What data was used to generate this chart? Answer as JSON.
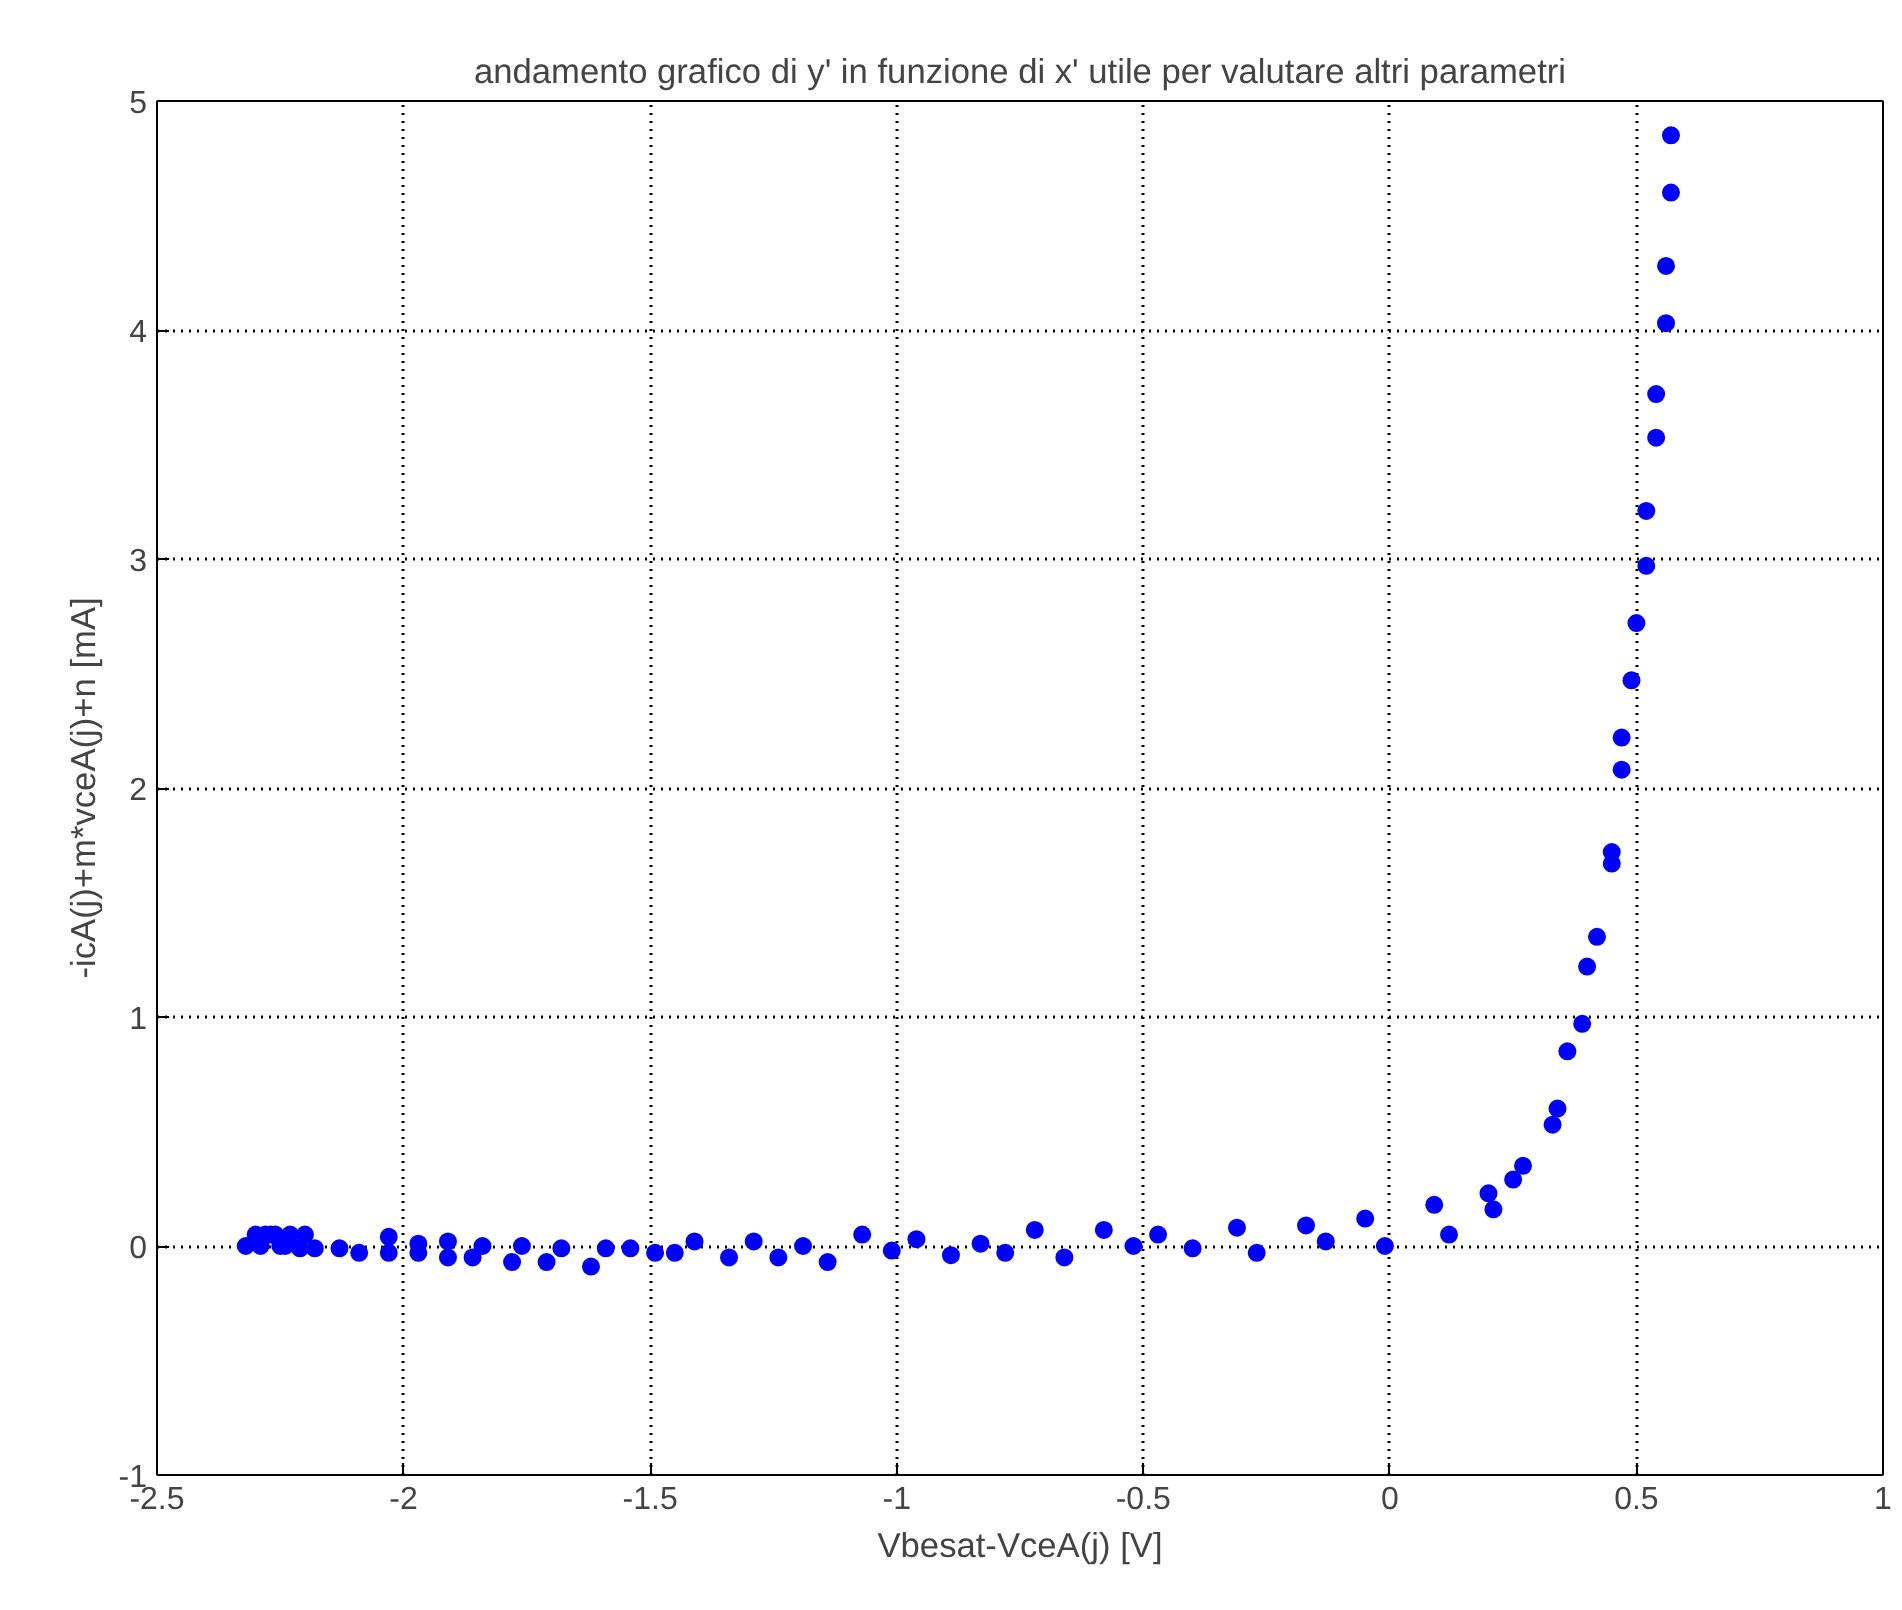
{
  "chart_data": {
    "type": "scatter",
    "title": "andamento grafico di y' in funzione di x' utile per valutare altri parametri",
    "xlabel": "Vbesat-VceA(j) [V]",
    "ylabel": "-icA(j)+m*vceA(j)+n [mA]",
    "xlim": [
      -2.5,
      1
    ],
    "ylim": [
      -1,
      5
    ],
    "xticks": [
      -2.5,
      -2,
      -1.5,
      -1,
      -0.5,
      0,
      0.5,
      1
    ],
    "yticks": [
      -1,
      0,
      1,
      2,
      3,
      4,
      5
    ],
    "grid": true,
    "marker": "circle",
    "series": [
      {
        "color": "#0000ff",
        "x": [
          -2.32,
          -2.3,
          -2.29,
          -2.28,
          -2.27,
          -2.26,
          -2.25,
          -2.24,
          -2.23,
          -2.21,
          -2.2,
          -2.18,
          -2.13,
          -2.09,
          -2.03,
          -2.03,
          -1.97,
          -1.97,
          -1.91,
          -1.91,
          -1.86,
          -1.84,
          -1.78,
          -1.76,
          -1.71,
          -1.68,
          -1.62,
          -1.59,
          -1.54,
          -1.49,
          -1.45,
          -1.41,
          -1.34,
          -1.29,
          -1.24,
          -1.19,
          -1.14,
          -1.07,
          -1.01,
          -0.96,
          -0.89,
          -0.83,
          -0.78,
          -0.72,
          -0.66,
          -0.58,
          -0.52,
          -0.47,
          -0.4,
          -0.31,
          -0.27,
          -0.17,
          -0.13,
          -0.05,
          -0.01,
          0.09,
          0.12,
          0.2,
          0.21,
          0.25,
          0.27,
          0.33,
          0.34,
          0.36,
          0.39,
          0.4,
          0.42,
          0.45,
          0.45,
          0.47,
          0.47,
          0.49,
          0.5,
          0.52,
          0.52,
          0.54,
          0.54,
          0.56,
          0.56,
          0.57,
          0.57
        ],
        "values": [
          0,
          0.05,
          0,
          0.05,
          0.05,
          0.05,
          0,
          0,
          0.05,
          -0.01,
          0.05,
          -0.01,
          -0.01,
          -0.03,
          0.04,
          -0.03,
          0.01,
          -0.03,
          0.02,
          -0.05,
          -0.05,
          0,
          -0.07,
          0,
          -0.07,
          -0.01,
          -0.09,
          -0.01,
          -0.01,
          -0.03,
          -0.03,
          0.02,
          -0.05,
          0.02,
          -0.05,
          0,
          -0.07,
          0.05,
          -0.02,
          0.03,
          -0.04,
          0.01,
          -0.03,
          0.07,
          -0.05,
          0.07,
          0,
          0.05,
          -0.01,
          0.08,
          -0.03,
          0.09,
          0.02,
          0.12,
          0,
          0.18,
          0.05,
          0.23,
          0.16,
          0.29,
          0.35,
          0.53,
          0.6,
          0.85,
          0.97,
          1.22,
          1.35,
          1.67,
          1.72,
          2.08,
          2.22,
          2.47,
          2.72,
          2.97,
          3.21,
          3.53,
          3.72,
          4.03,
          4.28,
          4.6,
          4.85
        ]
      }
    ]
  }
}
